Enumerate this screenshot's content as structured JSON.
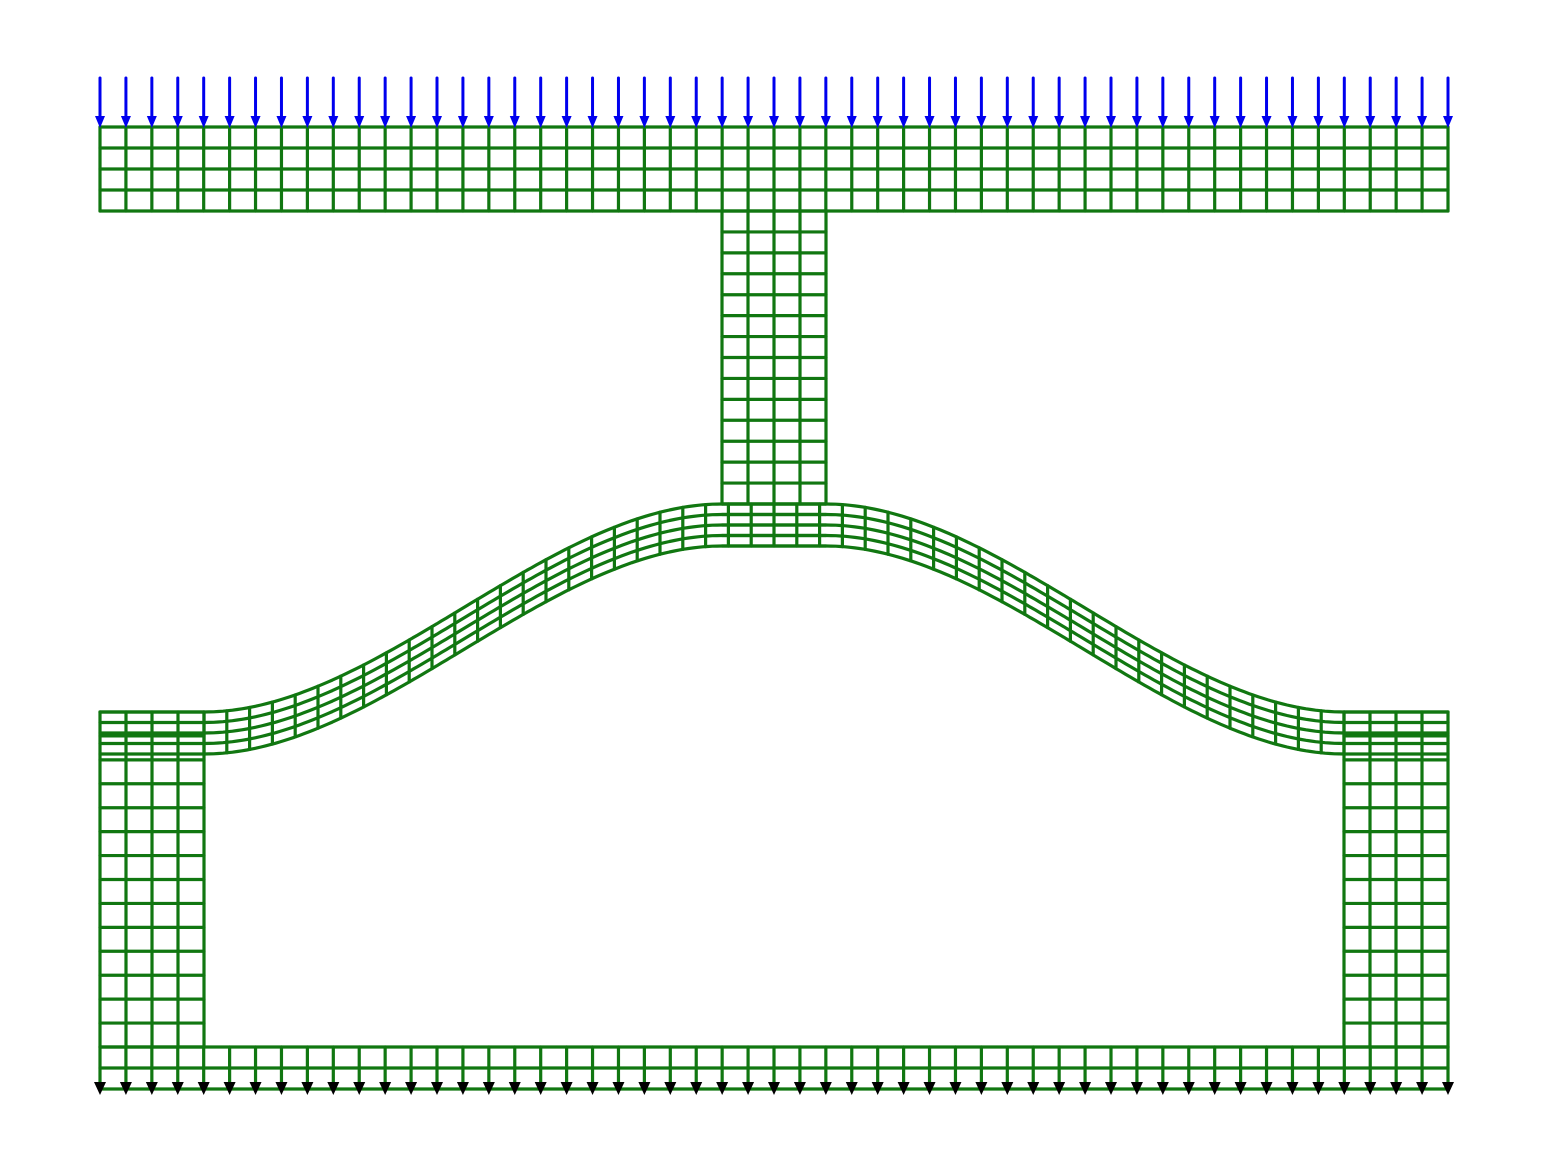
{
  "colors": {
    "mesh": "#117711",
    "load_arrows": "#0000ee",
    "support_arrows": "#000000",
    "background": "#ffffff"
  },
  "diagram": {
    "type": "finite-element-mesh",
    "top_flange": {
      "columns": 52,
      "rows": 4
    },
    "stem": {
      "columns": 4,
      "rows": 14
    },
    "curved_band": {
      "columns": 50,
      "rows": 4
    },
    "legs": {
      "columns": 4,
      "rows": 14
    },
    "bottom_band": {
      "columns": 52,
      "rows": 2
    },
    "load_arrow_count": 53,
    "support_arrow_count": 53
  }
}
